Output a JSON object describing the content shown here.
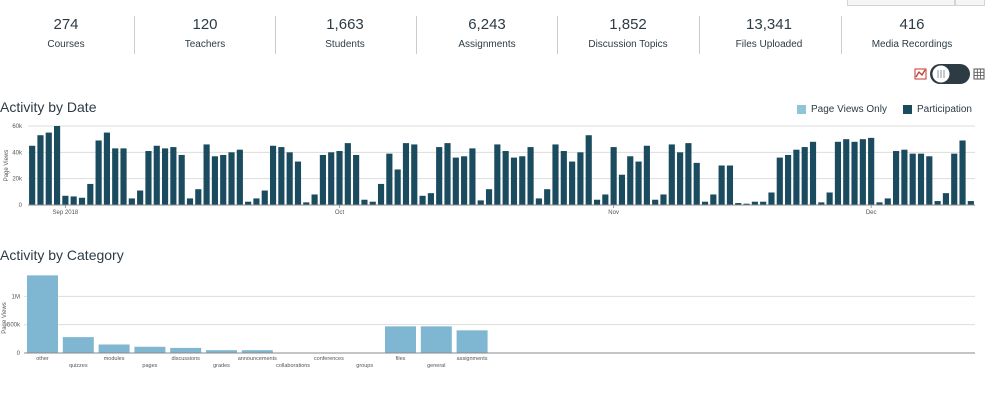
{
  "stats": [
    {
      "value": "274",
      "label": "Courses"
    },
    {
      "value": "120",
      "label": "Teachers"
    },
    {
      "value": "1,663",
      "label": "Students"
    },
    {
      "value": "6,243",
      "label": "Assignments"
    },
    {
      "value": "1,852",
      "label": "Discussion Topics"
    },
    {
      "value": "13,341",
      "label": "Files Uploaded"
    },
    {
      "value": "416",
      "label": "Media Recordings"
    }
  ],
  "view_toggle": {
    "chart_icon": "line-chart-icon",
    "table_icon": "table-grid-icon",
    "state": "chart"
  },
  "colors": {
    "page_views": "#8fc4da",
    "participation": "#1b4b5f",
    "category_bar": "#7fb7d2",
    "axis": "#555555",
    "grid": "#dddddd"
  },
  "chart_data": [
    {
      "type": "bar",
      "title": "Activity by Date",
      "ylabel": "Page Views",
      "ylim": [
        0,
        60000
      ],
      "yticks": [
        0,
        20000,
        40000,
        60000
      ],
      "ytick_labels": [
        "0",
        "20k",
        "40k",
        "60k"
      ],
      "x_month_labels": [
        {
          "label": "Sep 2018",
          "index": 4
        },
        {
          "label": "Oct",
          "index": 37
        },
        {
          "label": "Nov",
          "index": 70
        },
        {
          "label": "Dec",
          "index": 101
        }
      ],
      "legend": [
        "Page Views Only",
        "Participation"
      ],
      "legend_placement": "top-right",
      "series": [
        {
          "name": "Participation",
          "values": [
            45000,
            53000,
            55000,
            60000,
            7000,
            6500,
            5500,
            16000,
            49000,
            55000,
            43000,
            43000,
            5000,
            11000,
            41000,
            45000,
            43000,
            44000,
            38000,
            5000,
            12000,
            46000,
            37000,
            38000,
            40000,
            42000,
            2500,
            5000,
            11000,
            45000,
            44000,
            40000,
            33000,
            2000,
            8000,
            38000,
            40000,
            41000,
            47000,
            38000,
            4000,
            2500,
            16000,
            39000,
            27000,
            47000,
            46000,
            7000,
            9000,
            44000,
            47000,
            36000,
            37000,
            43000,
            3500,
            12000,
            46000,
            41000,
            36000,
            37000,
            44000,
            5000,
            12000,
            46000,
            41000,
            33000,
            40000,
            53000,
            4000,
            8000,
            44000,
            23000,
            37000,
            33000,
            45000,
            4000,
            8000,
            46000,
            40000,
            47000,
            32000,
            2500,
            8000,
            30000,
            30000,
            1500,
            1000,
            2500,
            2500,
            9500,
            36000,
            38000,
            42000,
            44000,
            48000,
            2000,
            9500,
            48000,
            50000,
            48000,
            50000,
            51000,
            2000,
            5000,
            41000,
            42000,
            39000,
            39000,
            37000,
            3000,
            9000,
            39000,
            49000,
            3000
          ]
        }
      ]
    },
    {
      "type": "bar",
      "title": "Activity by Category",
      "ylabel": "Page Views",
      "ylim": [
        0,
        1500000
      ],
      "yticks": [
        0,
        500000,
        1000000
      ],
      "ytick_labels": [
        "0",
        "500k",
        "1M"
      ],
      "categories": [
        "other",
        "quizzes",
        "modules",
        "pages",
        "discussions",
        "grades",
        "announcements",
        "collaborations",
        "conferences",
        "groups",
        "files",
        "general",
        "assignments"
      ],
      "values": [
        1370000,
        280000,
        150000,
        110000,
        90000,
        50000,
        50000,
        5000,
        3000,
        2000,
        470000,
        470000,
        400000
      ]
    }
  ]
}
